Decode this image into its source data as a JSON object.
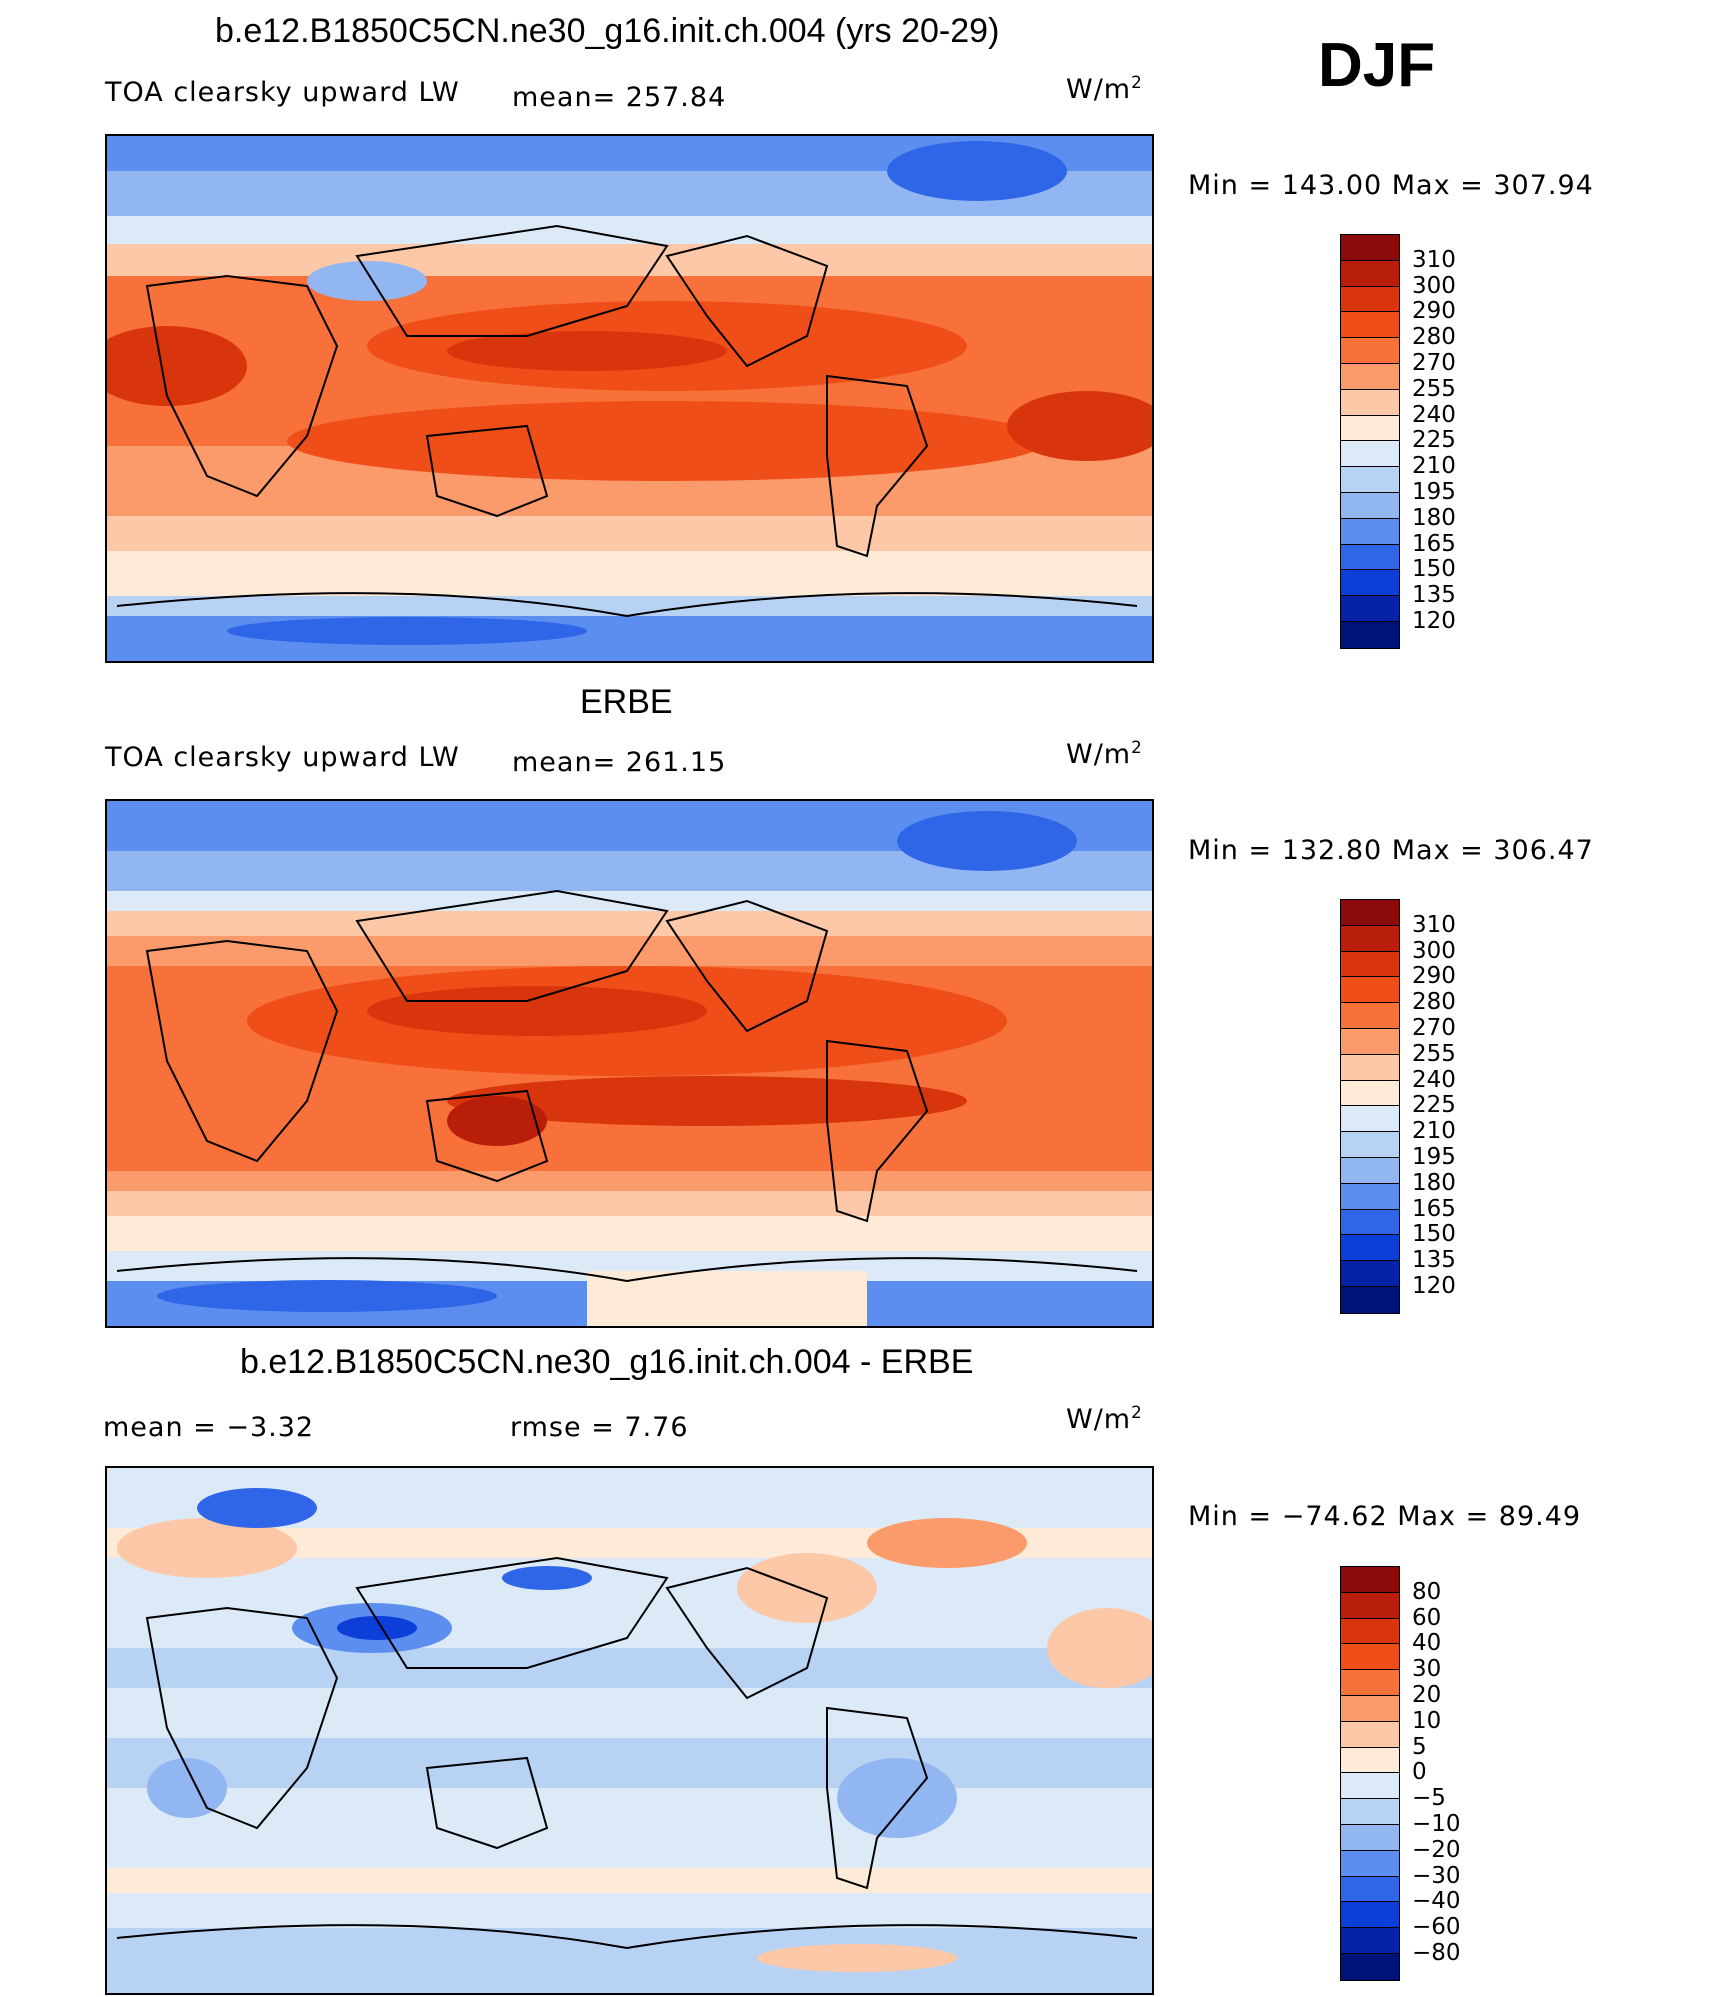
{
  "season": "DJF",
  "units": {
    "text": "W/m",
    "power": "2"
  },
  "panel1": {
    "title": "b.e12.B1850C5CN.ne30_g16.init.ch.004 (yrs 20-29)",
    "variable": "TOA clearsky upward LW",
    "mean_text": "mean= 257.84",
    "minmax": "Min  =  143.00  Max  =  307.94"
  },
  "panel2": {
    "title": "ERBE",
    "variable": "TOA clearsky upward LW",
    "mean_text": "mean= 261.15",
    "minmax": "Min  =  132.80  Max  =  306.47"
  },
  "panel3": {
    "title": "b.e12.B1850C5CN.ne30_g16.init.ch.004 - ERBE",
    "mean_text": "mean =    −3.32",
    "rmse_text": "rmse =     7.76",
    "minmax": "Min  =  −74.62  Max  =    89.49"
  },
  "colorbar_abs": {
    "labels": [
      "310",
      "300",
      "290",
      "280",
      "270",
      "255",
      "240",
      "225",
      "210",
      "195",
      "180",
      "165",
      "150",
      "135",
      "120"
    ],
    "colors": [
      "#8b0a0a",
      "#b81e0a",
      "#d8350d",
      "#f04e18",
      "#f8713a",
      "#fb9a6a",
      "#fdc8a8",
      "#fdebd8",
      "#dce9f7",
      "#b8d2f3",
      "#92b6f1",
      "#5c8ef0",
      "#2f66e8",
      "#0c3ed8",
      "#0623a8",
      "#00137a"
    ]
  },
  "colorbar_diff": {
    "labels": [
      "80",
      "60",
      "40",
      "30",
      "20",
      "10",
      "5",
      "0",
      "−5",
      "−10",
      "−20",
      "−30",
      "−40",
      "−60",
      "−80"
    ],
    "colors": [
      "#8b0a0a",
      "#b81e0a",
      "#d8350d",
      "#f04e18",
      "#f8713a",
      "#fb9a6a",
      "#fdc8a8",
      "#fdebd8",
      "#dce9f7",
      "#b8d2f3",
      "#92b6f1",
      "#5c8ef0",
      "#2f66e8",
      "#0c3ed8",
      "#0623a8",
      "#00137a"
    ]
  }
}
